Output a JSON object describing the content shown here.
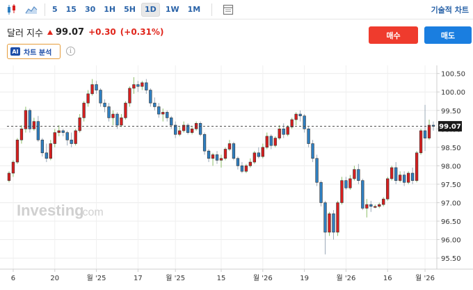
{
  "toolbar": {
    "timeframes": [
      "5",
      "15",
      "30",
      "1H",
      "5H",
      "1D",
      "1W",
      "1M"
    ],
    "active_timeframe": "1D",
    "technical_chart": "기술적 차트"
  },
  "instrument": {
    "name": "달러 지수",
    "price": "99.07",
    "change": "+0.30",
    "change_pct": "(+0.31%)"
  },
  "actions": {
    "buy": "매수",
    "sell": "매도"
  },
  "ai": {
    "badge": "AI",
    "label": "차트 분석"
  },
  "watermark": {
    "brand": "Investing",
    "suffix": ".com"
  },
  "colors": {
    "up": "#d81f1f",
    "down": "#2f7fc1",
    "buy": "#ef3b2d",
    "sell": "#1a7ee0",
    "accent": "#2a63a8"
  },
  "chart_data": {
    "type": "candlestick",
    "ylim": [
      95.2,
      100.72
    ],
    "y_ticks": [
      95.5,
      96.0,
      96.5,
      97.0,
      97.5,
      98.0,
      98.5,
      99.0,
      99.5,
      100.0,
      100.5
    ],
    "y_tick_labels": [
      "95.50",
      "96.00",
      "96.50",
      "97.00",
      "97.50",
      "98.00",
      "98.50",
      "99.00",
      "99.50",
      "100.00",
      "100.50"
    ],
    "x_tick_labels": [
      {
        "label": "6",
        "index": 1
      },
      {
        "label": "20",
        "index": 11
      },
      {
        "label": "월 '25",
        "index": 21
      },
      {
        "label": "17",
        "index": 31
      },
      {
        "label": "월 '25",
        "index": 40
      },
      {
        "label": "15",
        "index": 51
      },
      {
        "label": "월 '26",
        "index": 61
      },
      {
        "label": "19",
        "index": 71
      },
      {
        "label": "월 '26",
        "index": 81
      },
      {
        "label": "16",
        "index": 91
      },
      {
        "label": "월 '26",
        "index": 100
      }
    ],
    "last_price": 99.07,
    "last_price_label": "99.07",
    "ohlc": [
      [
        97.6,
        97.85,
        97.55,
        97.8
      ],
      [
        97.8,
        98.15,
        97.7,
        98.1
      ],
      [
        98.1,
        98.75,
        98.05,
        98.7
      ],
      [
        98.7,
        99.1,
        98.6,
        99.0
      ],
      [
        99.0,
        99.6,
        98.9,
        99.5
      ],
      [
        99.5,
        99.55,
        98.9,
        99.0
      ],
      [
        99.0,
        99.3,
        98.95,
        99.2
      ],
      [
        99.2,
        99.35,
        98.65,
        98.7
      ],
      [
        98.7,
        98.75,
        98.25,
        98.35
      ],
      [
        98.35,
        98.6,
        98.1,
        98.2
      ],
      [
        98.2,
        98.7,
        98.15,
        98.6
      ],
      [
        98.6,
        99.0,
        98.5,
        98.9
      ],
      [
        98.9,
        99.1,
        98.8,
        98.95
      ],
      [
        98.95,
        99.0,
        98.8,
        98.9
      ],
      [
        98.9,
        98.95,
        98.55,
        98.7
      ],
      [
        98.7,
        98.9,
        98.5,
        98.6
      ],
      [
        98.6,
        99.0,
        98.55,
        98.95
      ],
      [
        98.95,
        99.4,
        98.9,
        99.3
      ],
      [
        99.3,
        99.75,
        99.2,
        99.7
      ],
      [
        99.7,
        100.05,
        99.6,
        99.95
      ],
      [
        99.95,
        100.35,
        99.9,
        100.2
      ],
      [
        100.2,
        100.3,
        99.95,
        100.05
      ],
      [
        100.05,
        100.1,
        99.6,
        99.7
      ],
      [
        99.7,
        99.8,
        99.45,
        99.6
      ],
      [
        99.6,
        99.7,
        99.2,
        99.3
      ],
      [
        99.3,
        99.5,
        99.1,
        99.4
      ],
      [
        99.4,
        99.45,
        99.0,
        99.1
      ],
      [
        99.1,
        99.4,
        99.05,
        99.3
      ],
      [
        99.3,
        99.75,
        99.25,
        99.7
      ],
      [
        99.7,
        100.15,
        99.6,
        100.1
      ],
      [
        100.1,
        100.4,
        99.95,
        100.2
      ],
      [
        100.2,
        100.3,
        100.0,
        100.15
      ],
      [
        100.15,
        100.3,
        100.05,
        100.25
      ],
      [
        100.25,
        100.35,
        99.95,
        100.05
      ],
      [
        100.05,
        100.1,
        99.6,
        99.7
      ],
      [
        99.7,
        99.85,
        99.5,
        99.6
      ],
      [
        99.6,
        99.7,
        99.3,
        99.4
      ],
      [
        99.4,
        99.55,
        99.2,
        99.45
      ],
      [
        99.45,
        99.5,
        99.2,
        99.3
      ],
      [
        99.3,
        99.35,
        99.0,
        99.1
      ],
      [
        99.1,
        99.2,
        98.75,
        98.85
      ],
      [
        98.85,
        99.05,
        98.8,
        98.95
      ],
      [
        98.95,
        99.2,
        98.9,
        99.1
      ],
      [
        99.1,
        99.15,
        98.85,
        98.9
      ],
      [
        98.9,
        99.05,
        98.85,
        99.0
      ],
      [
        99.0,
        99.2,
        98.95,
        99.15
      ],
      [
        99.15,
        99.2,
        98.8,
        98.85
      ],
      [
        98.85,
        98.9,
        98.3,
        98.4
      ],
      [
        98.4,
        98.45,
        98.1,
        98.2
      ],
      [
        98.2,
        98.35,
        98.0,
        98.3
      ],
      [
        98.3,
        98.4,
        98.05,
        98.15
      ],
      [
        98.15,
        98.3,
        97.95,
        98.2
      ],
      [
        98.2,
        98.5,
        98.15,
        98.45
      ],
      [
        98.45,
        98.7,
        98.4,
        98.6
      ],
      [
        98.6,
        98.65,
        98.15,
        98.2
      ],
      [
        98.2,
        98.25,
        97.9,
        98.0
      ],
      [
        98.0,
        98.1,
        97.8,
        97.85
      ],
      [
        97.85,
        98.05,
        97.8,
        98.0
      ],
      [
        98.0,
        98.2,
        97.95,
        98.1
      ],
      [
        98.1,
        98.4,
        98.05,
        98.35
      ],
      [
        98.35,
        98.5,
        98.2,
        98.25
      ],
      [
        98.25,
        98.6,
        98.2,
        98.5
      ],
      [
        98.5,
        98.9,
        98.45,
        98.8
      ],
      [
        98.8,
        98.85,
        98.45,
        98.55
      ],
      [
        98.55,
        98.8,
        98.5,
        98.75
      ],
      [
        98.75,
        99.1,
        98.7,
        99.0
      ],
      [
        99.0,
        99.15,
        98.75,
        98.85
      ],
      [
        98.85,
        99.1,
        98.8,
        99.05
      ],
      [
        99.05,
        99.3,
        99.0,
        99.25
      ],
      [
        99.25,
        99.45,
        99.1,
        99.4
      ],
      [
        99.4,
        99.5,
        99.2,
        99.35
      ],
      [
        99.35,
        99.4,
        98.9,
        99.0
      ],
      [
        99.0,
        99.05,
        98.5,
        98.6
      ],
      [
        98.6,
        98.7,
        98.1,
        98.2
      ],
      [
        98.2,
        98.3,
        97.45,
        97.55
      ],
      [
        97.55,
        97.6,
        96.9,
        97.0
      ],
      [
        97.0,
        97.05,
        95.6,
        96.2
      ],
      [
        96.2,
        96.75,
        96.1,
        96.7
      ],
      [
        96.7,
        96.8,
        96.0,
        96.2
      ],
      [
        96.2,
        97.05,
        96.1,
        97.0
      ],
      [
        97.0,
        97.7,
        96.95,
        97.6
      ],
      [
        97.6,
        97.7,
        97.35,
        97.4
      ],
      [
        97.4,
        97.75,
        97.35,
        97.65
      ],
      [
        97.65,
        98.0,
        97.6,
        97.9
      ],
      [
        97.9,
        98.05,
        97.5,
        97.6
      ],
      [
        97.6,
        97.65,
        96.8,
        96.85
      ],
      [
        96.85,
        97.1,
        96.6,
        96.95
      ],
      [
        96.95,
        97.05,
        96.75,
        96.9
      ],
      [
        96.9,
        96.95,
        96.85,
        96.9
      ],
      [
        96.9,
        97.0,
        96.85,
        96.95
      ],
      [
        96.95,
        97.15,
        96.9,
        97.1
      ],
      [
        97.1,
        97.7,
        97.05,
        97.65
      ],
      [
        97.65,
        98.0,
        97.6,
        97.95
      ],
      [
        97.95,
        98.1,
        97.5,
        97.6
      ],
      [
        97.6,
        97.85,
        97.55,
        97.75
      ],
      [
        97.75,
        97.85,
        97.45,
        97.55
      ],
      [
        97.55,
        97.85,
        97.5,
        97.8
      ],
      [
        97.8,
        97.95,
        97.5,
        97.6
      ],
      [
        97.6,
        98.4,
        97.55,
        98.35
      ],
      [
        98.35,
        99.0,
        98.3,
        98.95
      ],
      [
        98.95,
        99.65,
        98.4,
        98.75
      ],
      [
        98.75,
        99.25,
        98.7,
        99.1
      ],
      [
        99.1,
        99.2,
        98.95,
        99.07
      ]
    ]
  }
}
